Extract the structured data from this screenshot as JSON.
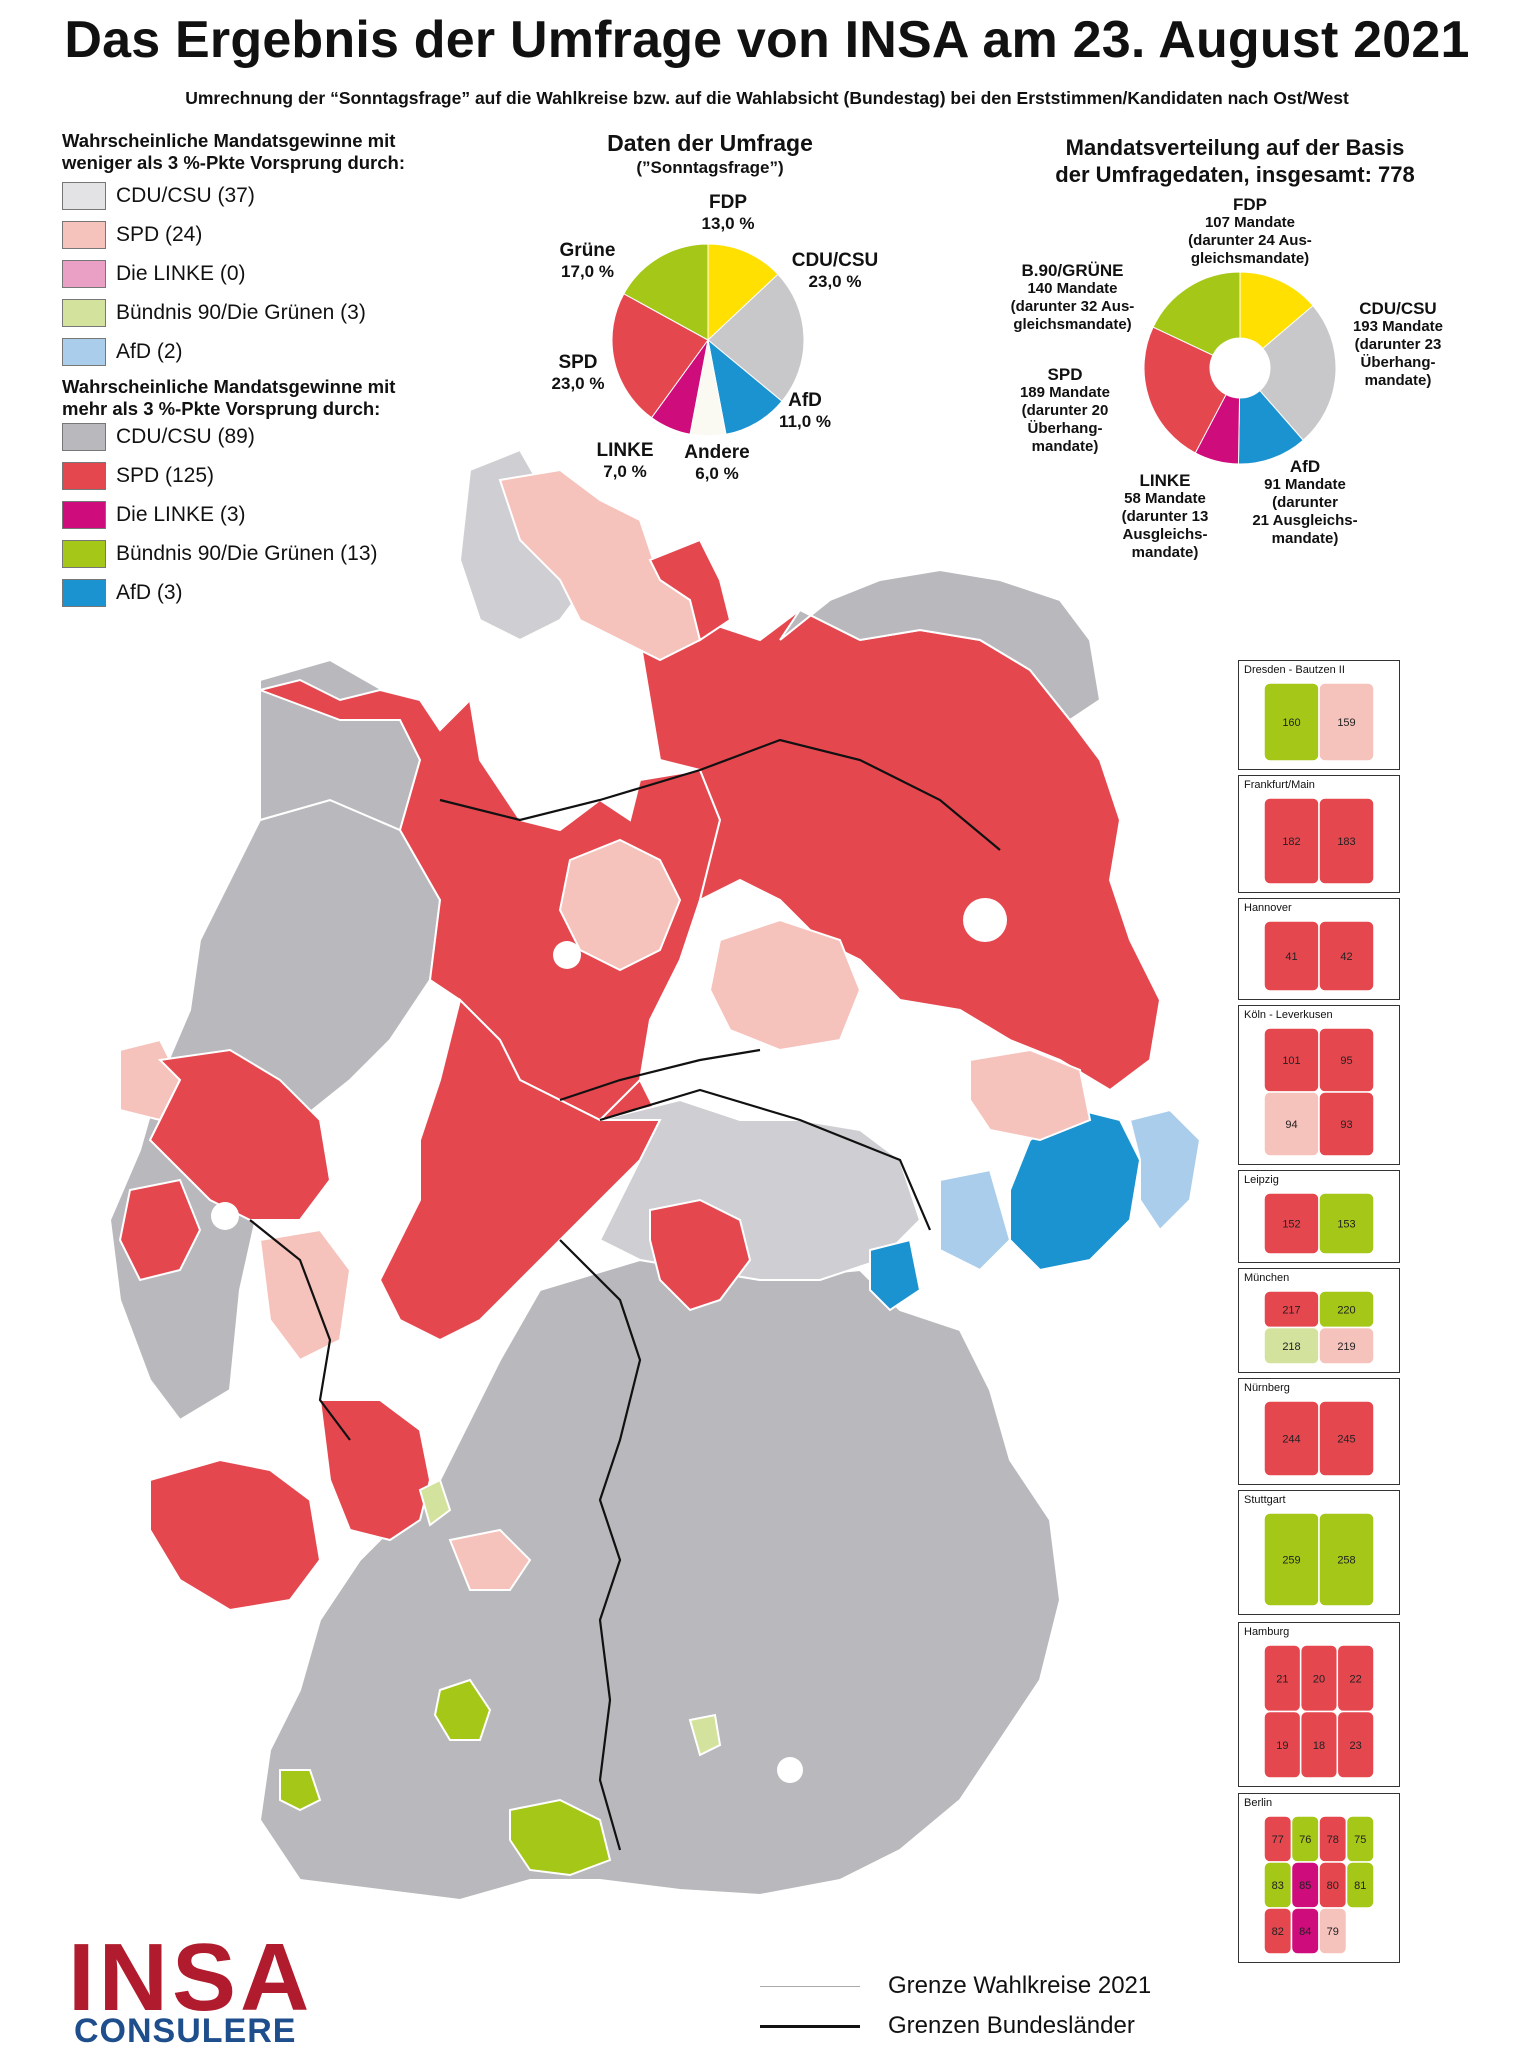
{
  "title": "Das Ergebnis der Umfrage von INSA am 23. August 2021",
  "subtitle": "Umrechnung der “Sonntagsfrage” auf die Wahlkreise bzw. auf die Wahlabsicht (Bundestag) bei den Erststimmen/Kandidaten nach Ost/West",
  "legend": {
    "under3_heading_1": "Wahrscheinliche Mandatsgewinne mit",
    "under3_heading_2": "weniger als 3 %-Pkte Vorsprung durch:",
    "under3": [
      {
        "label": "CDU/CSU (37)",
        "color": "#e3e3e6"
      },
      {
        "label": "SPD (24)",
        "color": "#f6c2bc"
      },
      {
        "label": "Die LINKE (0)",
        "color": "#eaa0c4"
      },
      {
        "label": "Bündnis 90/Die Grünen (3)",
        "color": "#d3e29c"
      },
      {
        "label": "AfD (2)",
        "color": "#a9cdea"
      }
    ],
    "over3_heading_1": "Wahrscheinliche Mandatsgewinne mit",
    "over3_heading_2": "mehr als 3 %-Pkte Vorsprung durch:",
    "over3": [
      {
        "label": "CDU/CSU (89)",
        "color": "#b9b9bd"
      },
      {
        "label": "SPD (125)",
        "color": "#e5474f"
      },
      {
        "label": "Die LINKE (3)",
        "color": "#cf0c7b"
      },
      {
        "label": "Bündnis 90/Die Grünen (13)",
        "color": "#a5c717"
      },
      {
        "label": "AfD (3)",
        "color": "#1b93d1"
      }
    ]
  },
  "survey": {
    "title": "Daten der Umfrage",
    "subtitle": "(”Sonntagsfrage”)",
    "slices": [
      {
        "party": "FDP",
        "value": 13.0,
        "label": "13,0 %",
        "color": "#ffe000"
      },
      {
        "party": "CDU/CSU",
        "value": 23.0,
        "label": "23,0 %",
        "color": "#c8c7c9"
      },
      {
        "party": "AfD",
        "value": 11.0,
        "label": "11,0 %",
        "color": "#1b93d1"
      },
      {
        "party": "Andere",
        "value": 6.0,
        "label": "6,0 %",
        "color": "#fafaf2"
      },
      {
        "party": "LINKE",
        "value": 7.0,
        "label": "7,0 %",
        "color": "#cf0c7b"
      },
      {
        "party": "SPD",
        "value": 23.0,
        "label": "23,0 %",
        "color": "#e5474f"
      },
      {
        "party": "Grüne",
        "value": 17.0,
        "label": "17,0 %",
        "color": "#a5c717"
      }
    ]
  },
  "seats": {
    "title_1": "Mandatsverteilung auf der Basis",
    "title_2": "der Umfragedaten, insgesamt: 778",
    "slices": [
      {
        "party": "FDP",
        "value": 107,
        "lines": [
          "107 Mandate",
          "(darunter 24 Aus-",
          "gleichsmandate)"
        ],
        "color": "#ffe000"
      },
      {
        "party": "CDU/CSU",
        "value": 193,
        "lines": [
          "193 Mandate",
          "(darunter 23",
          "Überhang-",
          "mandate)"
        ],
        "color": "#c8c7c9"
      },
      {
        "party": "AfD",
        "value": 91,
        "lines": [
          "91 Mandate",
          "(darunter",
          "21 Ausgleichs-",
          "mandate)"
        ],
        "color": "#1b93d1"
      },
      {
        "party": "LINKE",
        "value": 58,
        "lines": [
          "58 Mandate",
          "(darunter 13",
          "Ausgleichs-",
          "mandate)"
        ],
        "color": "#cf0c7b"
      },
      {
        "party": "SPD",
        "value": 189,
        "lines": [
          "189 Mandate",
          "(darunter 20",
          "Überhang-",
          "mandate)"
        ],
        "color": "#e5474f"
      },
      {
        "party": "B.90/GRÜNE",
        "value": 140,
        "lines": [
          "140 Mandate",
          "(darunter 32 Aus-",
          "gleichsmandate)"
        ],
        "color": "#a5c717"
      }
    ]
  },
  "insets": [
    {
      "name": "Dresden - Bautzen II",
      "numbers": [
        "160",
        "159"
      ]
    },
    {
      "name": "Frankfurt/Main",
      "numbers": [
        "182",
        "183"
      ]
    },
    {
      "name": "Hannover",
      "numbers": [
        "41",
        "42"
      ]
    },
    {
      "name": "Köln -  Leverkusen",
      "numbers": [
        "101",
        "95",
        "94",
        "93"
      ]
    },
    {
      "name": "Leipzig",
      "numbers": [
        "152",
        "153"
      ]
    },
    {
      "name": "München",
      "numbers": [
        "217",
        "220",
        "218",
        "219"
      ]
    },
    {
      "name": "Nürnberg",
      "numbers": [
        "244",
        "245"
      ]
    },
    {
      "name": "Stuttgart",
      "numbers": [
        "259",
        "258"
      ]
    },
    {
      "name": "Hamburg",
      "numbers": [
        "21",
        "20",
        "22",
        "19",
        "18",
        "23"
      ]
    },
    {
      "name": "Berlin",
      "numbers": [
        "77",
        "76",
        "78",
        "75",
        "83",
        "85",
        "80",
        "81",
        "82",
        "84",
        "79"
      ]
    }
  ],
  "border_legend": {
    "wahlkreise": "Grenze Wahlkreise 2021",
    "laender": "Grenzen Bundesländer"
  },
  "logo": {
    "line1": "INSA",
    "line2": "CONSULERE"
  }
}
